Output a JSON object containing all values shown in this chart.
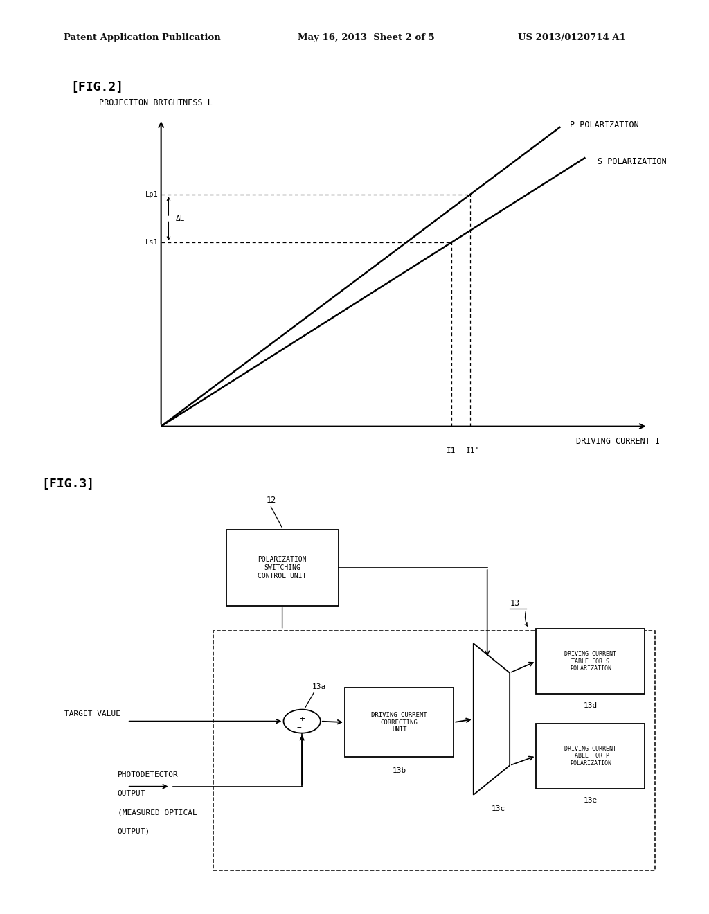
{
  "bg_color": "#ffffff",
  "header_left": "Patent Application Publication",
  "header_mid": "May 16, 2013  Sheet 2 of 5",
  "header_right": "US 2013/0120714 A1",
  "fig2_label": "[FIG.2]",
  "fig2_ylabel": "PROJECTION BRIGHTNESS L",
  "fig2_xlabel": "DRIVING CURRENT I",
  "fig2_line_p_label": "P POLARIZATION",
  "fig2_line_s_label": "S POLARIZATION",
  "fig2_Lp_label": "Lp1",
  "fig2_Ls_label": "Ls1",
  "fig2_dL_label": "ΔL",
  "fig2_I_label": "I1",
  "fig2_Iprime_label": "I1'",
  "fig3_label": "[FIG.3]",
  "fig3_box12_label": "12",
  "fig3_box12_text": "POLARIZATION\nSWITCHING\nCONTROL UNIT",
  "fig3_box13_label": "13",
  "fig3_box13a_label": "13a",
  "fig3_box13b_label": "13b",
  "fig3_box13c_label": "13c",
  "fig3_box13d_label": "13d",
  "fig3_box13e_label": "13e",
  "fig3_dccu_text": "DRIVING CURRENT\nCORRECTING\nUNIT",
  "fig3_dcts_text": "DRIVING CURRENT\nTABLE FOR S\nPOLARIZATION",
  "fig3_dctp_text": "DRIVING CURRENT\nTABLE FOR P\nPOLARIZATION",
  "fig3_target_label": "TARGET VALUE",
  "fig3_photo_line1": "PHOTODETECTOR",
  "fig3_photo_line2": "OUTPUT",
  "fig3_photo_line3": "(MEASURED OPTICAL",
  "fig3_photo_line4": "OUTPUT)"
}
